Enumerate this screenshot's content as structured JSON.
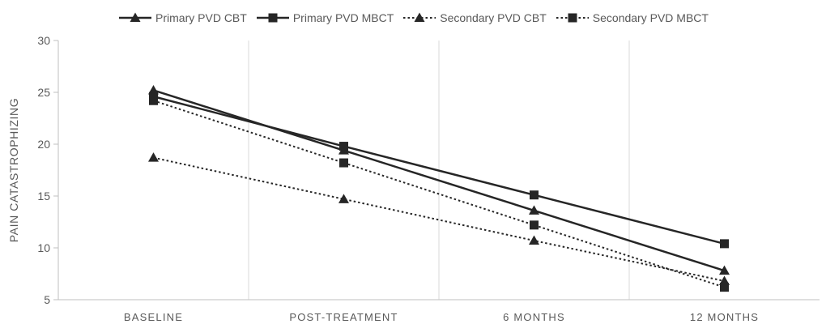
{
  "chart_data": {
    "type": "line",
    "title": "",
    "xlabel": "",
    "ylabel": "PAIN CATASTROPHIZING",
    "categories": [
      "BASELINE",
      "POST-TREATMENT",
      "6 MONTHS",
      "12 MONTHS"
    ],
    "ylim": [
      5,
      30
    ],
    "yticks": [
      5,
      10,
      15,
      20,
      25,
      30
    ],
    "grid": "vertical",
    "legend_position": "top",
    "series": [
      {
        "name": "Primary PVD CBT",
        "values": [
          25.2,
          19.4,
          13.6,
          7.8
        ],
        "marker": "triangle",
        "line": "solid",
        "color": "#262626"
      },
      {
        "name": "Primary PVD MBCT",
        "values": [
          24.6,
          19.8,
          15.1,
          10.4
        ],
        "marker": "square",
        "line": "solid",
        "color": "#262626"
      },
      {
        "name": "Secondary PVD CBT",
        "values": [
          18.7,
          14.7,
          10.7,
          6.8
        ],
        "marker": "triangle",
        "line": "dotted",
        "color": "#262626"
      },
      {
        "name": "Secondary PVD MBCT",
        "values": [
          24.2,
          18.2,
          12.2,
          6.2
        ],
        "marker": "square",
        "line": "dotted",
        "color": "#262626"
      }
    ]
  }
}
